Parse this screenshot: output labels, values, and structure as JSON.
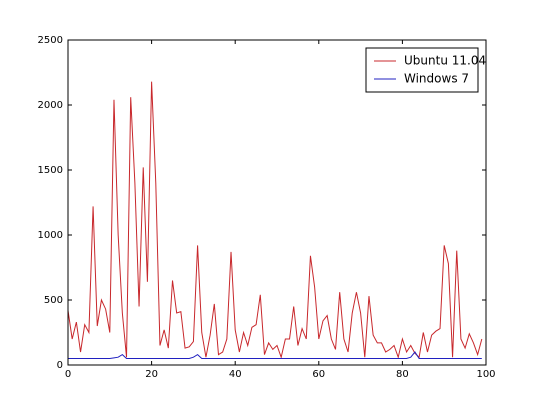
{
  "chart_data": {
    "type": "line",
    "x": [
      0,
      1,
      2,
      3,
      4,
      5,
      6,
      7,
      8,
      9,
      10,
      11,
      12,
      13,
      14,
      15,
      16,
      17,
      18,
      19,
      20,
      21,
      22,
      23,
      24,
      25,
      26,
      27,
      28,
      29,
      30,
      31,
      32,
      33,
      34,
      35,
      36,
      37,
      38,
      39,
      40,
      41,
      42,
      43,
      44,
      45,
      46,
      47,
      48,
      49,
      50,
      51,
      52,
      53,
      54,
      55,
      56,
      57,
      58,
      59,
      60,
      61,
      62,
      63,
      64,
      65,
      66,
      67,
      68,
      69,
      70,
      71,
      72,
      73,
      74,
      75,
      76,
      77,
      78,
      79,
      80,
      81,
      82,
      83,
      84,
      85,
      86,
      87,
      88,
      89,
      90,
      91,
      92,
      93,
      94,
      95,
      96,
      97,
      98,
      99
    ],
    "series": [
      {
        "name": "Ubuntu 11.04",
        "color": "#c8282c",
        "values": [
          420,
          200,
          330,
          100,
          310,
          250,
          1220,
          300,
          500,
          430,
          250,
          2040,
          1000,
          400,
          60,
          2060,
          1400,
          450,
          1520,
          640,
          2180,
          1400,
          150,
          270,
          130,
          650,
          400,
          410,
          130,
          140,
          180,
          920,
          250,
          60,
          230,
          470,
          80,
          100,
          200,
          870,
          270,
          100,
          250,
          150,
          290,
          310,
          540,
          80,
          170,
          120,
          150,
          60,
          200,
          200,
          450,
          150,
          280,
          200,
          840,
          600,
          200,
          340,
          380,
          200,
          120,
          560,
          200,
          100,
          400,
          560,
          400,
          60,
          530,
          230,
          170,
          170,
          100,
          120,
          150,
          60,
          200,
          100,
          150,
          90,
          60,
          250,
          100,
          230,
          260,
          280,
          920,
          780,
          60,
          880,
          200,
          130,
          240,
          170,
          80,
          200
        ]
      },
      {
        "name": "Windows 7",
        "color": "#2020c0",
        "values": [
          50,
          50,
          50,
          50,
          50,
          50,
          50,
          50,
          50,
          50,
          50,
          55,
          60,
          80,
          50,
          50,
          50,
          50,
          50,
          50,
          50,
          50,
          50,
          50,
          50,
          50,
          50,
          50,
          50,
          50,
          60,
          80,
          50,
          50,
          50,
          50,
          50,
          50,
          50,
          50,
          50,
          50,
          50,
          50,
          50,
          50,
          50,
          50,
          50,
          50,
          50,
          50,
          50,
          50,
          50,
          50,
          50,
          50,
          50,
          50,
          50,
          50,
          50,
          50,
          50,
          50,
          50,
          50,
          50,
          50,
          50,
          50,
          50,
          50,
          50,
          50,
          50,
          50,
          50,
          50,
          50,
          50,
          60,
          100,
          50,
          50,
          50,
          50,
          50,
          50,
          50,
          50,
          50,
          50,
          50,
          50,
          50,
          50,
          50,
          50
        ]
      }
    ],
    "xlim": [
      0,
      100
    ],
    "xticks": [
      0,
      20,
      40,
      60,
      80,
      100
    ],
    "ylim": [
      0,
      2500
    ],
    "yticks": [
      0,
      500,
      1000,
      1500,
      2000,
      2500
    ],
    "grid": false,
    "legend": "upper right"
  }
}
